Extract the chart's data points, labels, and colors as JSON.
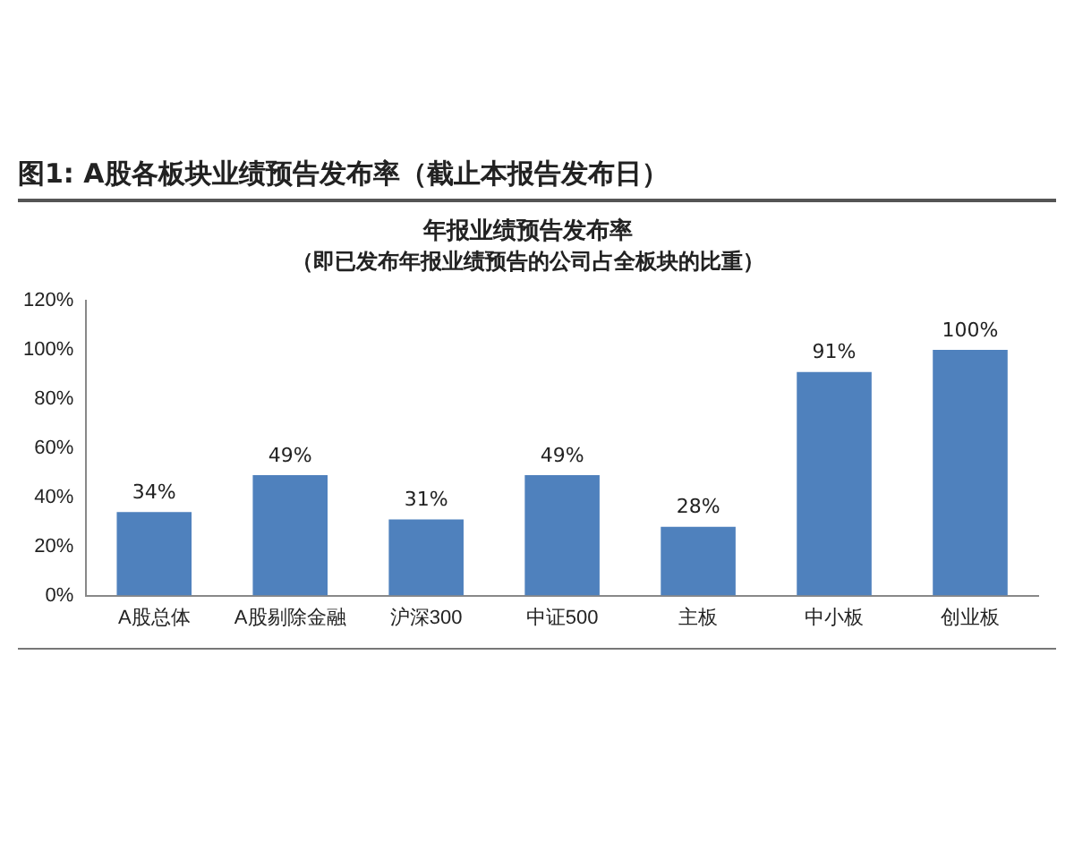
{
  "chart_data": {
    "type": "bar",
    "title": "年报业绩预告发布率",
    "subtitle": "（即已发布年报业绩预告的公司占全板块的比重）",
    "annotations": [
      "图1: A股各板块业绩预告发布率（截止本报告发布日）"
    ],
    "categories": [
      "A股总体",
      "A股剔除金融",
      "沪深300",
      "中证500",
      "主板",
      "中小板",
      "创业板"
    ],
    "values": [
      34,
      49,
      31,
      49,
      28,
      91,
      100
    ],
    "value_labels": [
      "34%",
      "49%",
      "31%",
      "49%",
      "28%",
      "91%",
      "100%"
    ],
    "color": "#4f81bd",
    "ylim": [
      0,
      120
    ],
    "yticks": [
      {
        "value": 0,
        "label": "0%"
      },
      {
        "value": 20,
        "label": "20%"
      },
      {
        "value": 40,
        "label": "40%"
      },
      {
        "value": 60,
        "label": "60%"
      },
      {
        "value": 80,
        "label": "80%"
      },
      {
        "value": 100,
        "label": "100%"
      },
      {
        "value": 120,
        "label": "120%"
      }
    ],
    "grid": false,
    "legend": false
  }
}
